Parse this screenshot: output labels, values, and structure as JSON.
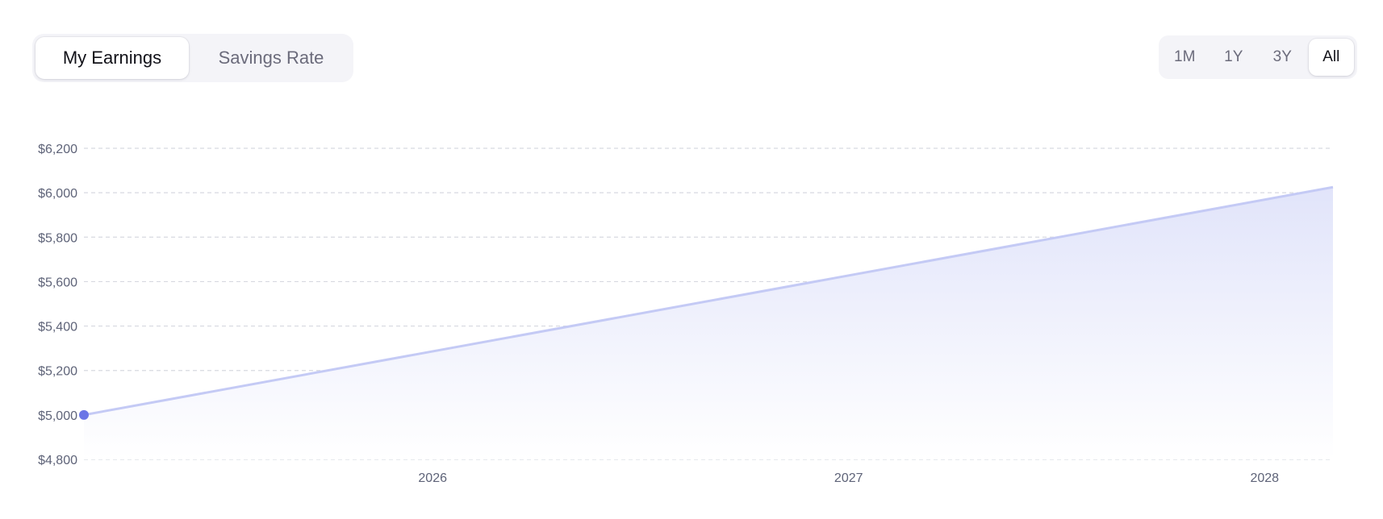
{
  "tabs": [
    {
      "label": "My Earnings",
      "active": true
    },
    {
      "label": "Savings Rate",
      "active": false
    }
  ],
  "ranges": [
    {
      "label": "1M",
      "active": false
    },
    {
      "label": "1Y",
      "active": false
    },
    {
      "label": "3Y",
      "active": false
    },
    {
      "label": "All",
      "active": true
    }
  ],
  "colors": {
    "line": "#c4caf5",
    "point": "#6b76e6",
    "area_top": "#e1e4fa",
    "grid": "#d7d9e0"
  },
  "chart_data": {
    "type": "area",
    "x": [
      "2025-03",
      "2028-03"
    ],
    "series": [
      {
        "values": [
          5000,
          6025
        ]
      }
    ],
    "ylim": [
      4800,
      6200
    ],
    "yticks": [
      "$4,800",
      "$5,000",
      "$5,200",
      "$5,400",
      "$5,600",
      "$5,800",
      "$6,000",
      "$6,200"
    ],
    "xticks": [
      "2026",
      "2027",
      "2028"
    ],
    "grid": true,
    "highlight_point": {
      "x": "2025-03",
      "y": 5000
    }
  }
}
